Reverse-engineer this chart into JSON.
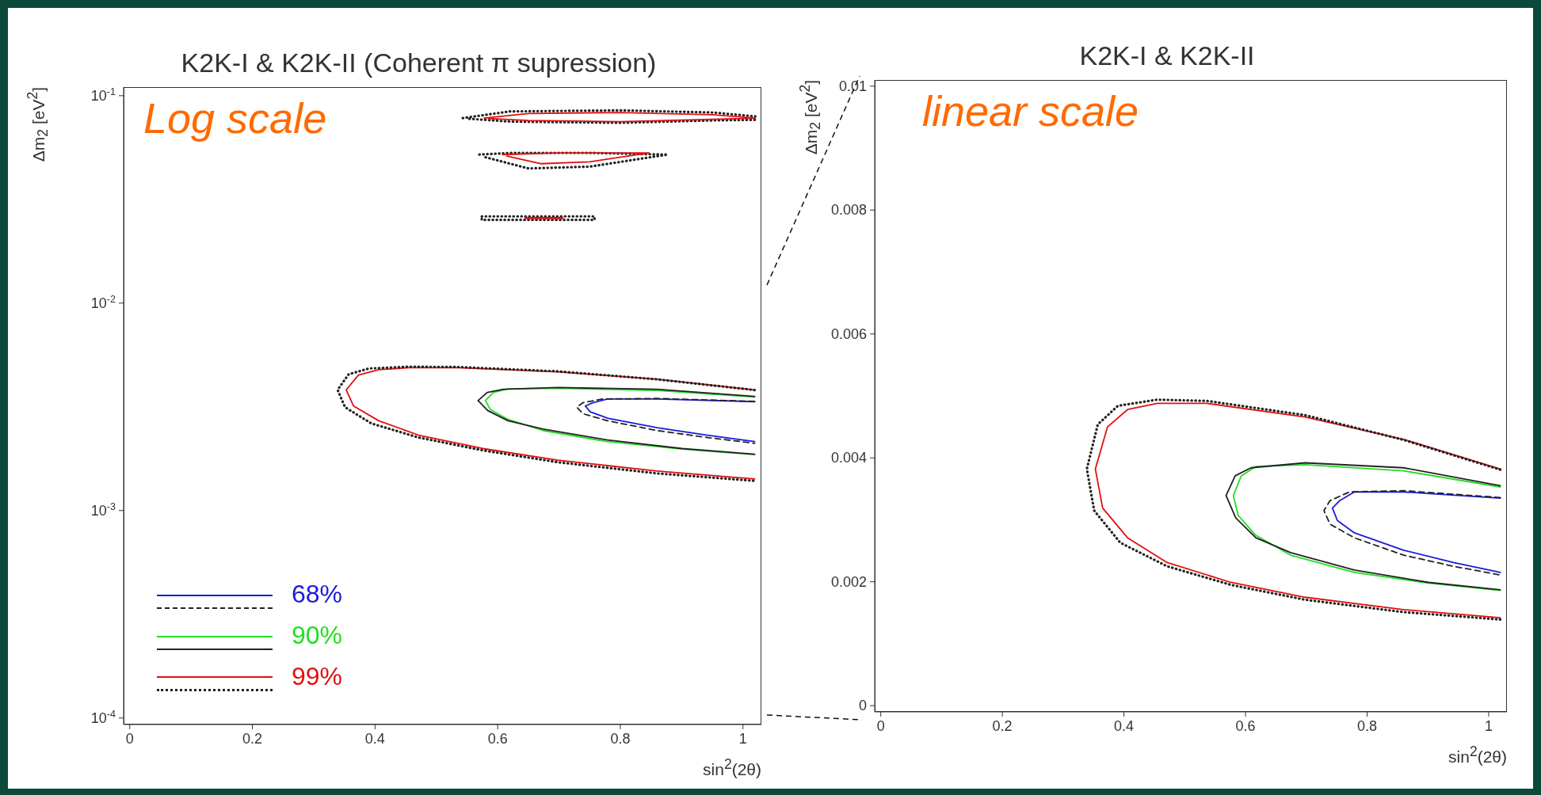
{
  "chart_data": [
    {
      "type": "line",
      "title": "K2K-I & K2K-II (Coherent π supression)",
      "xlabel": "sin$^{2}$(2θ)",
      "ylabel": "Δm$_{2}$ [eV$^{2}$]",
      "annotations": [
        "Log scale"
      ],
      "log": "y",
      "legend": "bottom left",
      "xlim": [
        -0.01,
        1.03
      ],
      "xticks": [
        0,
        0.2,
        0.4,
        0.6,
        0.8,
        1
      ],
      "ylim": [
        9.3e-05,
        0.11
      ],
      "yticks": [
        {
          "value": 0.1,
          "label": "10$^{-1}$"
        },
        {
          "value": 0.01,
          "label": "10$^{-2}$"
        },
        {
          "value": 0.001,
          "label": "10$^{-3}$"
        },
        {
          "value": 0.0001,
          "label": "10$^{-4}$"
        }
      ],
      "series": [
        {
          "name": "68%",
          "color": "#1a1adb",
          "x": [
            1.019,
            0.86,
            0.779,
            0.755,
            0.743,
            0.751,
            0.779,
            0.86,
            0.942,
            1.019
          ],
          "values": [
            0.00335,
            0.00345,
            0.00345,
            0.00331,
            0.00319,
            0.00299,
            0.00279,
            0.00251,
            0.00231,
            0.00215
          ]
        },
        {
          "color": "#222222",
          "line_style": "dashed",
          "x": [
            1.019,
            0.86,
            0.771,
            0.739,
            0.729,
            0.739,
            0.779,
            0.86,
            0.942,
            1.019
          ],
          "values": [
            0.00336,
            0.00347,
            0.00345,
            0.00331,
            0.00315,
            0.00293,
            0.00271,
            0.00243,
            0.00225,
            0.00211
          ]
        },
        {
          "name": "90%",
          "color": "#22dd22",
          "x": [
            1.019,
            0.86,
            0.698,
            0.617,
            0.593,
            0.58,
            0.588,
            0.617,
            0.674,
            0.779,
            0.901,
            1.019
          ],
          "values": [
            0.00353,
            0.00379,
            0.00389,
            0.00386,
            0.00371,
            0.00339,
            0.00307,
            0.00275,
            0.00243,
            0.00215,
            0.00198,
            0.00186
          ]
        },
        {
          "color": "#222222",
          "x": [
            1.019,
            0.86,
            0.698,
            0.609,
            0.583,
            0.568,
            0.584,
            0.617,
            0.674,
            0.779,
            0.901,
            1.019
          ],
          "values": [
            0.00355,
            0.00384,
            0.00392,
            0.00384,
            0.00371,
            0.00339,
            0.00303,
            0.00271,
            0.00247,
            0.00219,
            0.00199,
            0.00187
          ]
        },
        {
          "name": "99%",
          "color": "#e01010",
          "x": [
            1.019,
            0.86,
            0.698,
            0.536,
            0.455,
            0.406,
            0.373,
            0.353,
            0.365,
            0.406,
            0.471,
            0.576,
            0.698,
            0.86,
            1.019
          ],
          "values": [
            0.00382,
            0.0043,
            0.00466,
            0.00488,
            0.00488,
            0.00478,
            0.0045,
            0.00382,
            0.00319,
            0.00271,
            0.00231,
            0.00199,
            0.00175,
            0.00155,
            0.00142
          ]
        },
        {
          "color": "#222222",
          "line_style": "dotted",
          "x": [
            1.019,
            0.86,
            0.698,
            0.536,
            0.455,
            0.39,
            0.357,
            0.339,
            0.351,
            0.394,
            0.471,
            0.576,
            0.698,
            0.86,
            1.019
          ],
          "values": [
            0.00381,
            0.00429,
            0.00469,
            0.00492,
            0.00494,
            0.00484,
            0.00454,
            0.00382,
            0.00315,
            0.00263,
            0.00225,
            0.00195,
            0.00171,
            0.00151,
            0.00139
          ]
        },
        {
          "color": "#222222",
          "line_style": "dotted",
          "x": [
            0.543,
            0.62,
            0.8,
            0.95,
            1.02,
            1.02,
            0.95,
            0.8,
            0.62,
            0.55
          ],
          "values": [
            0.078,
            0.084,
            0.085,
            0.083,
            0.0795,
            0.0765,
            0.076,
            0.074,
            0.075,
            0.0775
          ]
        },
        {
          "color": "#e01010",
          "x": [
            0.578,
            0.65,
            0.8,
            0.95,
            1.02,
            0.95,
            0.8,
            0.65,
            0.585
          ],
          "values": [
            0.078,
            0.082,
            0.083,
            0.081,
            0.078,
            0.077,
            0.075,
            0.076,
            0.0777
          ]
        },
        {
          "color": "#222222",
          "line_style": "dotted",
          "x": [
            0.57,
            0.62,
            0.75,
            0.877,
            0.75,
            0.65,
            0.58
          ],
          "values": [
            0.052,
            0.053,
            0.053,
            0.052,
            0.0455,
            0.0446,
            0.0505
          ]
        },
        {
          "color": "#e01010",
          "x": [
            0.608,
            0.7,
            0.847,
            0.75,
            0.67,
            0.615
          ],
          "values": [
            0.052,
            0.053,
            0.053,
            0.048,
            0.047,
            0.0512
          ]
        },
        {
          "color": "#222222",
          "line_style": "dotted",
          "x": [
            0.574,
            0.758,
            0.758,
            0.574,
            0.574
          ],
          "values": [
            0.0262,
            0.0262,
            0.0252,
            0.0252,
            0.0261
          ]
        },
        {
          "color": "#e01010",
          "x": [
            0.645,
            0.706,
            0.706,
            0.645
          ],
          "values": [
            0.0258,
            0.0258,
            0.0256,
            0.0256
          ]
        }
      ]
    },
    {
      "type": "line",
      "title": "K2K-I & K2K-II",
      "xlabel": "sin$^{2}$(2θ)",
      "ylabel": "Δm$_{2}$ [eV$^{2}$]",
      "annotations": [
        "linear scale"
      ],
      "xlim": [
        -0.01,
        1.03
      ],
      "xticks": [
        0,
        0.2,
        0.4,
        0.6,
        0.8,
        1
      ],
      "ylim": [
        -0.0001,
        0.0101
      ],
      "yticks": [
        0,
        0.002,
        0.004,
        0.006,
        0.008,
        0.01
      ],
      "series": [
        {
          "color": "#1a1adb",
          "x": [
            1.019,
            0.86,
            0.779,
            0.755,
            0.743,
            0.751,
            0.779,
            0.86,
            0.942,
            1.019
          ],
          "values": [
            0.00335,
            0.00345,
            0.00345,
            0.00331,
            0.00319,
            0.00299,
            0.00279,
            0.00251,
            0.00231,
            0.00215
          ]
        },
        {
          "color": "#222222",
          "line_style": "dashed",
          "x": [
            1.019,
            0.86,
            0.771,
            0.739,
            0.729,
            0.739,
            0.779,
            0.86,
            0.942,
            1.019
          ],
          "values": [
            0.00336,
            0.00347,
            0.00345,
            0.00331,
            0.00315,
            0.00293,
            0.00271,
            0.00243,
            0.00225,
            0.00211
          ]
        },
        {
          "color": "#22dd22",
          "x": [
            1.019,
            0.86,
            0.698,
            0.617,
            0.593,
            0.58,
            0.588,
            0.617,
            0.674,
            0.779,
            0.901,
            1.019
          ],
          "values": [
            0.00353,
            0.00379,
            0.00389,
            0.00386,
            0.00371,
            0.00339,
            0.00307,
            0.00275,
            0.00243,
            0.00215,
            0.00198,
            0.00186
          ]
        },
        {
          "color": "#222222",
          "x": [
            1.019,
            0.86,
            0.698,
            0.609,
            0.583,
            0.568,
            0.584,
            0.617,
            0.674,
            0.779,
            0.901,
            1.019
          ],
          "values": [
            0.00355,
            0.00384,
            0.00392,
            0.00384,
            0.00371,
            0.00339,
            0.00303,
            0.00271,
            0.00247,
            0.00219,
            0.00199,
            0.00187
          ]
        },
        {
          "color": "#e01010",
          "x": [
            1.019,
            0.86,
            0.698,
            0.536,
            0.455,
            0.406,
            0.373,
            0.353,
            0.365,
            0.406,
            0.471,
            0.576,
            0.698,
            0.86,
            1.019
          ],
          "values": [
            0.00382,
            0.0043,
            0.00466,
            0.00488,
            0.00488,
            0.00478,
            0.0045,
            0.00382,
            0.00319,
            0.00271,
            0.00231,
            0.00199,
            0.00175,
            0.00155,
            0.00142
          ]
        },
        {
          "color": "#222222",
          "line_style": "dotted",
          "x": [
            1.019,
            0.86,
            0.698,
            0.536,
            0.455,
            0.39,
            0.357,
            0.339,
            0.351,
            0.394,
            0.471,
            0.576,
            0.698,
            0.86,
            1.019
          ],
          "values": [
            0.00381,
            0.00429,
            0.00469,
            0.00492,
            0.00494,
            0.00484,
            0.00454,
            0.00382,
            0.00315,
            0.00263,
            0.00225,
            0.00195,
            0.00171,
            0.00151,
            0.00139
          ]
        }
      ]
    }
  ]
}
